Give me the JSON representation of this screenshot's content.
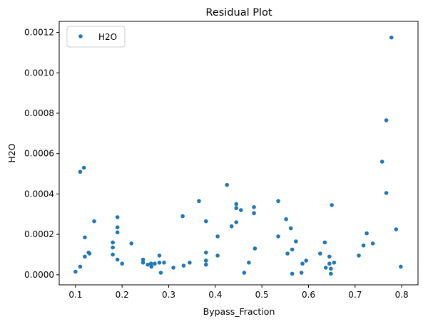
{
  "chart_data": {
    "type": "scatter",
    "title": "Residual Plot",
    "xlabel": "Bypass_Fraction",
    "ylabel": "H2O",
    "xlim": [
      0.065,
      0.835
    ],
    "ylim": [
      -5e-05,
      0.001255
    ],
    "xticks": [
      {
        "value": 0.1,
        "label": "0.1"
      },
      {
        "value": 0.2,
        "label": "0.2"
      },
      {
        "value": 0.3,
        "label": "0.3"
      },
      {
        "value": 0.4,
        "label": "0.4"
      },
      {
        "value": 0.5,
        "label": "0.5"
      },
      {
        "value": 0.6,
        "label": "0.6"
      },
      {
        "value": 0.7,
        "label": "0.7"
      },
      {
        "value": 0.8,
        "label": "0.8"
      }
    ],
    "yticks": [
      {
        "value": 0.0,
        "label": "0.0000"
      },
      {
        "value": 0.0002,
        "label": "0.0002"
      },
      {
        "value": 0.0004,
        "label": "0.0004"
      },
      {
        "value": 0.0006,
        "label": "0.0006"
      },
      {
        "value": 0.0008,
        "label": "0.0008"
      },
      {
        "value": 0.001,
        "label": "0.0010"
      },
      {
        "value": 0.0012,
        "label": "0.0012"
      }
    ],
    "grid": false,
    "legend_position": "top-left",
    "series": [
      {
        "name": "H2O",
        "color": "#1f77b4",
        "points": [
          [
            0.1,
            1.5e-05
          ],
          [
            0.11,
            4e-05
          ],
          [
            0.11,
            0.00051
          ],
          [
            0.118,
            0.00053
          ],
          [
            0.12,
            0.000185
          ],
          [
            0.12,
            9e-05
          ],
          [
            0.128,
            0.00011
          ],
          [
            0.13,
            0.000105
          ],
          [
            0.14,
            0.000265
          ],
          [
            0.18,
            0.00016
          ],
          [
            0.18,
            0.000135
          ],
          [
            0.18,
            0.0001
          ],
          [
            0.19,
            0.000285
          ],
          [
            0.19,
            0.000235
          ],
          [
            0.19,
            0.00021
          ],
          [
            0.19,
            7.5e-05
          ],
          [
            0.2,
            5.5e-05
          ],
          [
            0.22,
            0.000155
          ],
          [
            0.245,
            7.5e-05
          ],
          [
            0.245,
            6e-05
          ],
          [
            0.255,
            5e-05
          ],
          [
            0.262,
            5.5e-05
          ],
          [
            0.263,
            4e-05
          ],
          [
            0.27,
            5.5e-05
          ],
          [
            0.28,
            9.5e-05
          ],
          [
            0.28,
            6e-05
          ],
          [
            0.283,
            1e-05
          ],
          [
            0.29,
            6e-05
          ],
          [
            0.31,
            3.5e-05
          ],
          [
            0.33,
            0.00029
          ],
          [
            0.332,
            4.5e-05
          ],
          [
            0.345,
            6e-05
          ],
          [
            0.365,
            0.000365
          ],
          [
            0.38,
            0.000265
          ],
          [
            0.38,
            0.00011
          ],
          [
            0.38,
            7e-05
          ],
          [
            0.38,
            5e-05
          ],
          [
            0.405,
            0.00019
          ],
          [
            0.405,
            9.5e-05
          ],
          [
            0.425,
            0.000445
          ],
          [
            0.435,
            0.00024
          ],
          [
            0.445,
            0.00035
          ],
          [
            0.445,
            0.00033
          ],
          [
            0.445,
            0.00026
          ],
          [
            0.455,
            0.00032
          ],
          [
            0.462,
            1e-05
          ],
          [
            0.472,
            6e-05
          ],
          [
            0.483,
            0.000335
          ],
          [
            0.483,
            0.000305
          ],
          [
            0.485,
            0.00013
          ],
          [
            0.535,
            0.000365
          ],
          [
            0.535,
            0.00019
          ],
          [
            0.552,
            0.000275
          ],
          [
            0.555,
            0.000105
          ],
          [
            0.562,
            0.00023
          ],
          [
            0.565,
            0.000125
          ],
          [
            0.565,
            5e-06
          ],
          [
            0.573,
            0.000165
          ],
          [
            0.585,
            1e-05
          ],
          [
            0.587,
            5.5e-05
          ],
          [
            0.595,
            7e-05
          ],
          [
            0.625,
            0.000105
          ],
          [
            0.635,
            0.00016
          ],
          [
            0.637,
            3.5e-05
          ],
          [
            0.645,
            9e-05
          ],
          [
            0.645,
            5.5e-05
          ],
          [
            0.648,
            3e-05
          ],
          [
            0.648,
            5e-06
          ],
          [
            0.65,
            0.000345
          ],
          [
            0.655,
            6e-05
          ],
          [
            0.708,
            9.5e-05
          ],
          [
            0.718,
            0.000145
          ],
          [
            0.725,
            0.000205
          ],
          [
            0.738,
            0.000155
          ],
          [
            0.758,
            0.00056
          ],
          [
            0.767,
            0.000765
          ],
          [
            0.767,
            0.000405
          ],
          [
            0.778,
            0.001175
          ],
          [
            0.788,
            0.000225
          ],
          [
            0.798,
            4e-05
          ]
        ]
      }
    ]
  }
}
